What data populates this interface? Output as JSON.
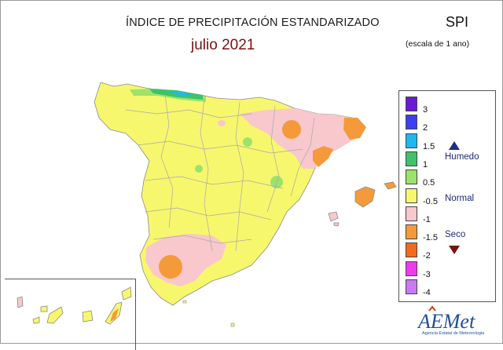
{
  "header": {
    "title": "ÍNDICE DE PRECIPITACIÓN ESTANDARIZADO",
    "subtitle": "julio 2021",
    "index_name": "SPI",
    "scale_note": "(escala de 1 ano)"
  },
  "legend": {
    "items": [
      {
        "label": "3",
        "color": "#6a1ad6"
      },
      {
        "label": "2",
        "color": "#3b3ff0"
      },
      {
        "label": "1.5",
        "color": "#1fb7f0"
      },
      {
        "label": "1",
        "color": "#3fc26a"
      },
      {
        "label": "0.5",
        "color": "#9be36a"
      },
      {
        "label": "-0.5",
        "color": "#f7f76e"
      },
      {
        "label": "-1",
        "color": "#f8c8cc"
      },
      {
        "label": "-1.5",
        "color": "#f59a3a"
      },
      {
        "label": "-2",
        "color": "#f36b1a"
      },
      {
        "label": "-3",
        "color": "#ee3bf0"
      },
      {
        "label": "-4",
        "color": "#c77af2"
      }
    ],
    "tags": {
      "wet": "Humedo",
      "normal": "Normal",
      "dry": "Seco"
    },
    "tag_colors": {
      "wet": "#1e2e8a",
      "dry": "#7a1010"
    }
  },
  "map_colors": {
    "normal": "#f7f76e",
    "dry": "#f8c8cc",
    "very_dry": "#f59a3a",
    "wet": "#9be36a",
    "very_wet": "#3fc26a",
    "sea_wet": "#1fb7f0"
  },
  "logo": {
    "name": "AEMet",
    "caption": "Agencia Estatal de Meteorologia"
  }
}
